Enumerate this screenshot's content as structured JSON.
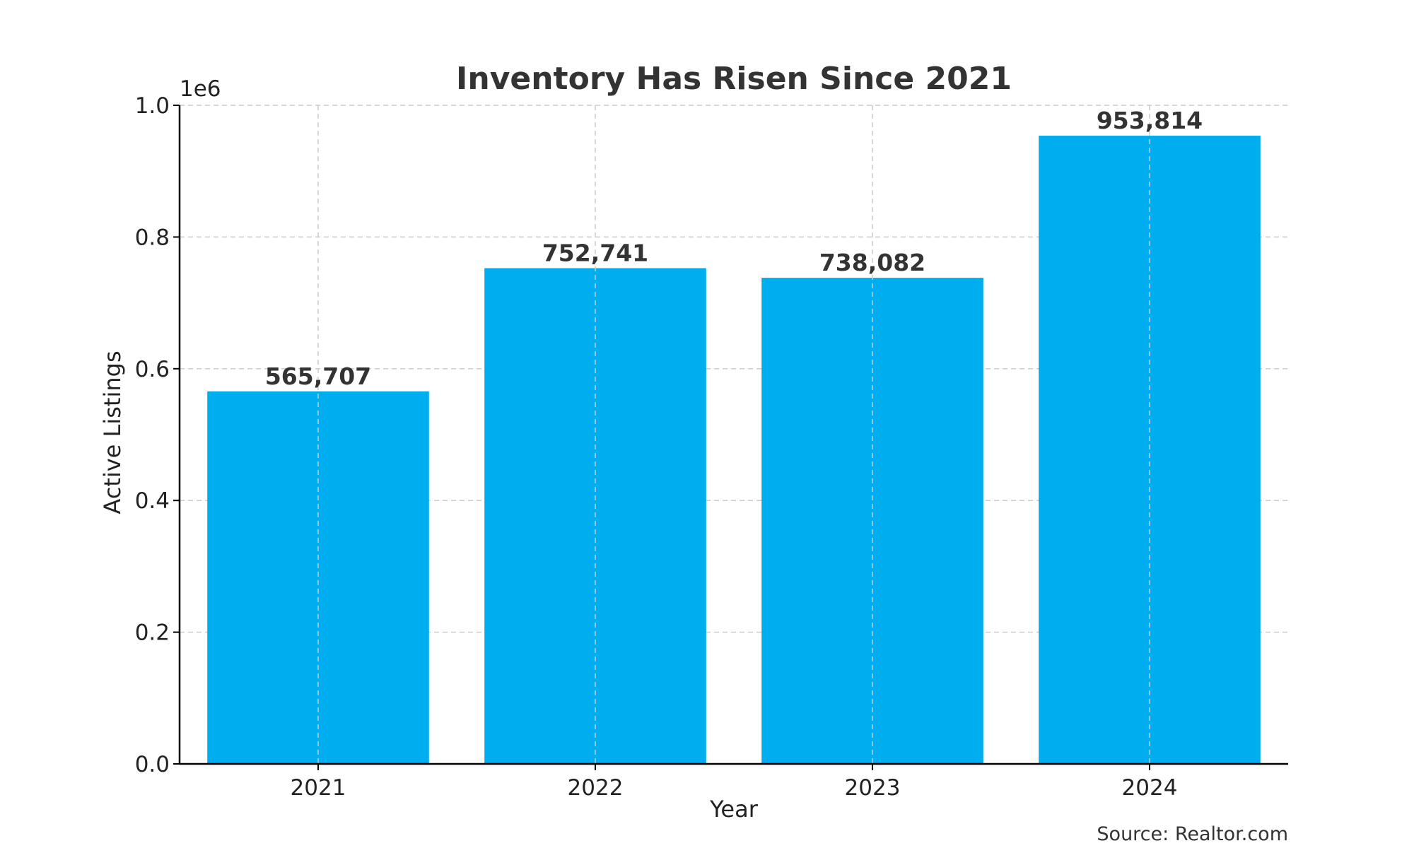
{
  "chart_data": {
    "type": "bar",
    "title": "Inventory Has Risen Since 2021",
    "xlabel": "Year",
    "ylabel": "Active Listings",
    "categories": [
      "2021",
      "2022",
      "2023",
      "2024"
    ],
    "values": [
      565707,
      752741,
      738082,
      953814
    ],
    "value_labels": [
      "565,707",
      "752,741",
      "738,082",
      "953,814"
    ],
    "ylim": [
      0,
      1000000
    ],
    "yticks": [
      0,
      200000,
      400000,
      600000,
      800000,
      1000000
    ],
    "ytick_labels": [
      "0.0",
      "0.2",
      "0.4",
      "0.6",
      "0.8",
      "1.0"
    ],
    "y_offset_label": "1e6",
    "grid": true,
    "bar_color": "#00ADEF",
    "source": "Source: Realtor.com"
  }
}
